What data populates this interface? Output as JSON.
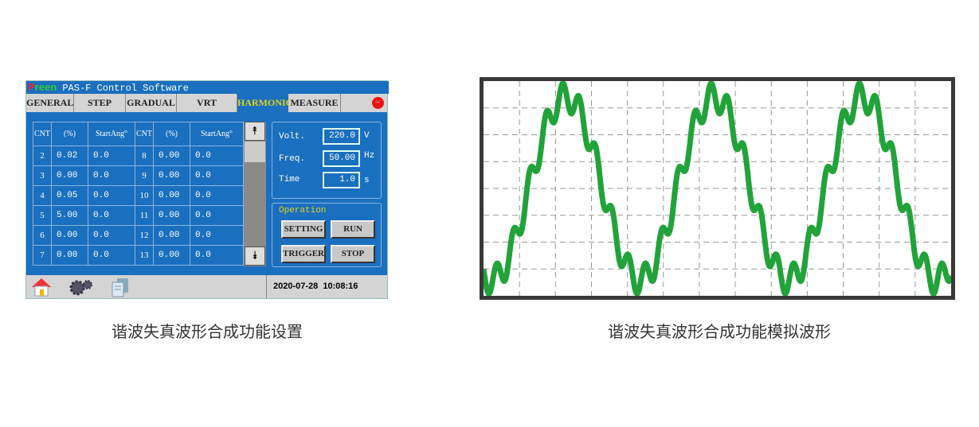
{
  "app": {
    "logo": "Preen",
    "title": "PAS-F Control Software",
    "tabs": [
      {
        "label": "GENERAL"
      },
      {
        "label": "STEP"
      },
      {
        "label": "GRADUAL"
      },
      {
        "label": "VRT"
      },
      {
        "label": "HARMONIC",
        "active": true
      },
      {
        "label": "MEASURE"
      }
    ],
    "ac_indicator": "AC",
    "table": {
      "headers": [
        "CNT",
        "(%)",
        "StartAng°",
        "CNT",
        "(%)",
        "StartAng°"
      ],
      "rows": [
        [
          "2",
          "0.02",
          "0.0",
          "8",
          "0.00",
          "0.0"
        ],
        [
          "3",
          "0.00",
          "0.0",
          "9",
          "0.00",
          "0.0"
        ],
        [
          "4",
          "0.05",
          "0.0",
          "10",
          "0.00",
          "0.0"
        ],
        [
          "5",
          "5.00",
          "0.0",
          "11",
          "0.00",
          "0.0"
        ],
        [
          "6",
          "0.00",
          "0.0",
          "12",
          "0.00",
          "0.0"
        ],
        [
          "7",
          "0.00",
          "0.0",
          "13",
          "0.00",
          "0.0"
        ]
      ]
    },
    "params": {
      "volt_label": "Volt.",
      "volt": "220.0",
      "volt_unit": "V",
      "freq_label": "Freq.",
      "freq": "50.00",
      "freq_unit": "Hz",
      "time_label": "Time",
      "time": "1.0",
      "time_unit": "s"
    },
    "operation": {
      "title": "Operation",
      "setting": "SETTING",
      "run": "RUN",
      "trigger": "TRIGGER",
      "stop": "STOP"
    },
    "status": {
      "datetime": "2020-07-28  10:08:16",
      "icons": [
        "home-icon",
        "gears-icon",
        "documents-icon"
      ]
    }
  },
  "captions": {
    "left": "谐波失真波形合成功能设置",
    "right": "谐波失真波形合成功能模拟波形"
  },
  "colors": {
    "ui_blue": "#1a6fbf",
    "active_tab": "#e6d21a",
    "wave": "#21a33a",
    "frame": "#3b3838"
  }
}
